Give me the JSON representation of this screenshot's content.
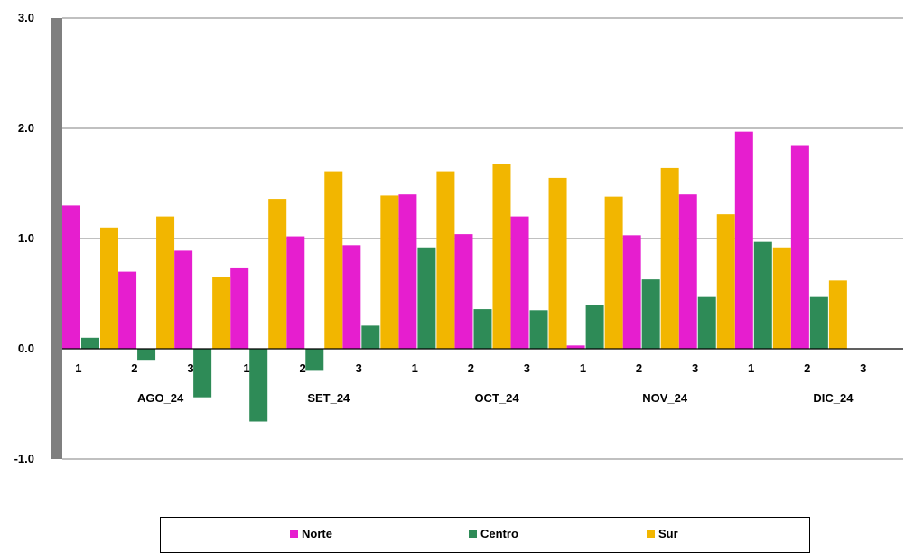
{
  "chart_data": {
    "type": "bar",
    "title": "",
    "xlabel": "",
    "ylabel": "",
    "ylim": [
      -1.0,
      3.0
    ],
    "yticks": [
      "3.0",
      "2.0",
      "1.0",
      "0.0",
      "-1.0"
    ],
    "grid": true,
    "legend_position": "bottom",
    "categories": [
      "1",
      "2",
      "3",
      "1",
      "2",
      "3",
      "1",
      "2",
      "3",
      "1",
      "2",
      "3",
      "1",
      "2",
      "3"
    ],
    "groups": [
      {
        "label": "AGO_24",
        "span": 3
      },
      {
        "label": "SET_24",
        "span": 3
      },
      {
        "label": "OCT_24",
        "span": 3
      },
      {
        "label": "NOV_24",
        "span": 3
      },
      {
        "label": "DIC_24",
        "span": 3
      }
    ],
    "series": [
      {
        "name": "Norte",
        "color": "#e61ecf",
        "values": [
          1.3,
          0.7,
          0.89,
          0.73,
          1.02,
          0.94,
          1.4,
          1.04,
          1.2,
          0.03,
          1.03,
          1.4,
          1.97,
          1.84,
          0.0
        ]
      },
      {
        "name": "Centro",
        "color": "#2e8b57",
        "values": [
          0.1,
          -0.1,
          -0.44,
          -0.66,
          -0.2,
          0.21,
          0.92,
          0.36,
          0.35,
          0.4,
          0.63,
          0.47,
          0.97,
          0.47,
          0.0
        ]
      },
      {
        "name": "Sur",
        "color": "#f2b600",
        "values": [
          1.1,
          1.2,
          0.65,
          1.36,
          1.61,
          1.39,
          1.61,
          1.68,
          1.55,
          1.38,
          1.64,
          1.22,
          0.92,
          0.62,
          0.0
        ]
      }
    ]
  }
}
